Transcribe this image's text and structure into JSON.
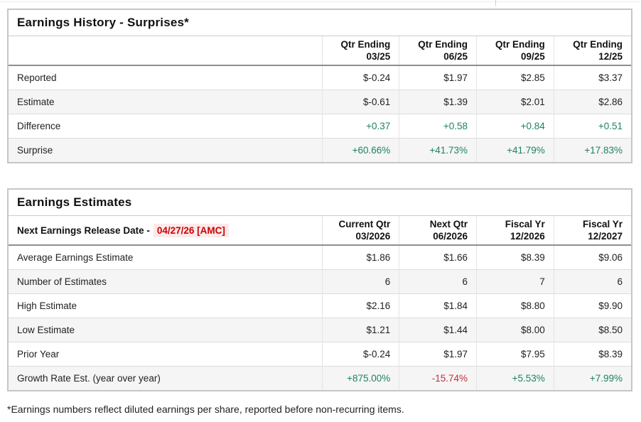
{
  "colors": {
    "positive_green": "#1e8264",
    "negative_red": "#c12f3f",
    "release_date_red": "#cc0000",
    "release_date_bg": "#fce9e9",
    "alt_row_bg": "#f5f5f5"
  },
  "history": {
    "title": "Earnings History - Surprises*",
    "columns": [
      {
        "line1": "Qtr Ending",
        "line2": "03/25"
      },
      {
        "line1": "Qtr Ending",
        "line2": "06/25"
      },
      {
        "line1": "Qtr Ending",
        "line2": "09/25"
      },
      {
        "line1": "Qtr Ending",
        "line2": "12/25"
      }
    ],
    "rows": [
      {
        "label": "Reported",
        "values": [
          "$-0.24",
          "$1.97",
          "$2.85",
          "$3.37"
        ]
      },
      {
        "label": "Estimate",
        "values": [
          "$-0.61",
          "$1.39",
          "$2.01",
          "$2.86"
        ]
      },
      {
        "label": "Difference",
        "values": [
          "+0.37",
          "+0.58",
          "+0.84",
          "+0.51"
        ]
      },
      {
        "label": "Surprise",
        "values": [
          "+60.66%",
          "+41.73%",
          "+41.79%",
          "+17.83%"
        ]
      }
    ]
  },
  "estimates": {
    "title": "Earnings Estimates",
    "release_label": "Next Earnings Release Date -",
    "release_date": "04/27/26 [AMC]",
    "columns": [
      {
        "line1": "Current Qtr",
        "line2": "03/2026"
      },
      {
        "line1": "Next Qtr",
        "line2": "06/2026"
      },
      {
        "line1": "Fiscal Yr",
        "line2": "12/2026"
      },
      {
        "line1": "Fiscal Yr",
        "line2": "12/2027"
      }
    ],
    "rows": [
      {
        "label": "Average Earnings Estimate",
        "values": [
          "$1.86",
          "$1.66",
          "$8.39",
          "$9.06"
        ]
      },
      {
        "label": "Number of Estimates",
        "values": [
          "6",
          "6",
          "7",
          "6"
        ]
      },
      {
        "label": "High Estimate",
        "values": [
          "$2.16",
          "$1.84",
          "$8.80",
          "$9.90"
        ]
      },
      {
        "label": "Low Estimate",
        "values": [
          "$1.21",
          "$1.44",
          "$8.00",
          "$8.50"
        ]
      },
      {
        "label": "Prior Year",
        "values": [
          "$-0.24",
          "$1.97",
          "$7.95",
          "$8.39"
        ]
      },
      {
        "label": "Growth Rate Est. (year over year)",
        "values": [
          "+875.00%",
          "-15.74%",
          "+5.53%",
          "+7.99%"
        ]
      }
    ]
  },
  "page": {
    "footnote": "*Earnings numbers reflect diluted earnings per share, reported before non-recurring items."
  }
}
